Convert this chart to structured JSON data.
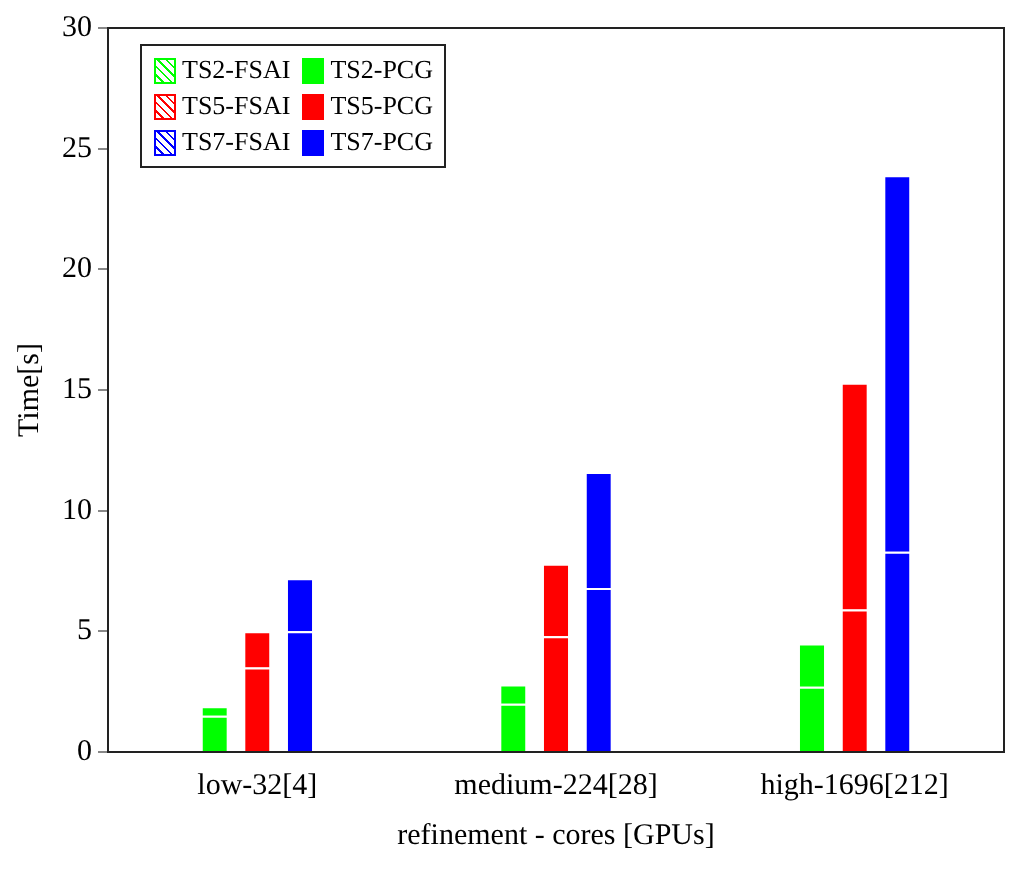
{
  "chart_data": {
    "type": "bar",
    "stacked": true,
    "xlabel": "refinement - cores [GPUs]",
    "ylabel": "Time[s]",
    "categories": [
      null,
      null,
      null,
      "low-32[4]",
      null,
      null,
      null,
      null,
      null,
      null,
      "medium-224[28]",
      null,
      null,
      null,
      null,
      null,
      null,
      "high-1696[212]",
      null,
      null,
      null
    ],
    "ylim": [
      0,
      30
    ],
    "yticks": [
      0,
      5,
      10,
      15,
      20,
      25,
      30
    ],
    "grid": false,
    "legend": "top left",
    "series": [
      {
        "name": "TS2-FSAI",
        "color": "#00ff00",
        "values": [
          null,
          null,
          1.5,
          null,
          null,
          null,
          null,
          null,
          null,
          2.0,
          null,
          null,
          null,
          null,
          null,
          null,
          2.7,
          null,
          null,
          null,
          null
        ]
      },
      {
        "name": "TS2-PCG",
        "color": "#00ff00",
        "values": [
          null,
          null,
          0.4,
          null,
          null,
          null,
          null,
          null,
          null,
          0.8,
          null,
          null,
          null,
          null,
          null,
          null,
          1.8,
          null,
          null,
          null,
          null
        ]
      },
      {
        "name": "TS5-FSAI",
        "color": "#ff0000",
        "values": [
          null,
          null,
          null,
          3.5,
          null,
          null,
          null,
          null,
          null,
          null,
          4.8,
          null,
          null,
          null,
          null,
          null,
          null,
          5.9,
          null,
          null,
          null
        ]
      },
      {
        "name": "TS5-PCG",
        "color": "#ff0000",
        "values": [
          null,
          null,
          null,
          1.5,
          null,
          null,
          null,
          null,
          null,
          null,
          3.0,
          null,
          null,
          null,
          null,
          null,
          null,
          9.4,
          null,
          null,
          null
        ]
      },
      {
        "name": "TS7-FSAI",
        "color": "#0000ff",
        "values": [
          null,
          null,
          null,
          null,
          5.0,
          null,
          null,
          null,
          null,
          null,
          null,
          6.8,
          null,
          null,
          null,
          null,
          null,
          null,
          8.3,
          null,
          null
        ]
      },
      {
        "name": "TS7-PCG",
        "color": "#0000ff",
        "values": [
          null,
          null,
          null,
          null,
          2.2,
          null,
          null,
          null,
          null,
          null,
          null,
          4.8,
          null,
          null,
          null,
          null,
          null,
          null,
          15.6,
          null,
          null
        ]
      }
    ]
  }
}
